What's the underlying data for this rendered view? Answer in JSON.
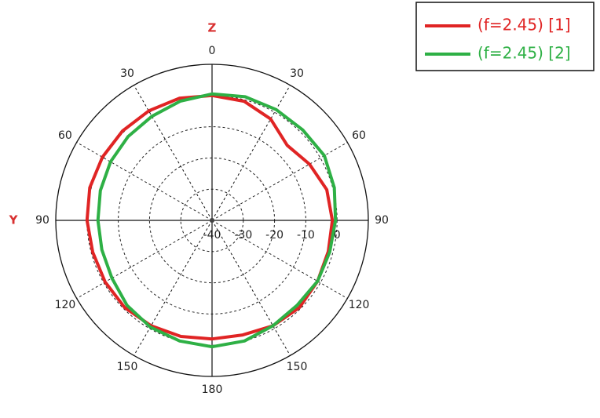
{
  "chart_data": {
    "type": "polar",
    "axis_labels": [
      "Z",
      "Y"
    ],
    "theta": [
      0,
      15,
      30,
      45,
      60,
      75,
      90,
      105,
      120,
      135,
      150,
      165,
      180,
      195,
      210,
      225,
      240,
      255,
      270,
      285,
      300,
      315,
      330,
      345
    ],
    "series": [
      {
        "name": "(f=2.45) [1]",
        "color": "#e02424",
        "values": [
          0,
          -0.5,
          -2.5,
          -6,
          -4,
          -2,
          -1.5,
          -1.5,
          -1,
          -0.5,
          -1,
          -2,
          -2,
          -1.5,
          -1,
          -0.5,
          -0.5,
          -0.5,
          0,
          0.5,
          0.5,
          0.5,
          0.5,
          0.5
        ]
      },
      {
        "name": "(f=2.45) [2]",
        "color": "#2eb045",
        "values": [
          0.5,
          1,
          1,
          1,
          1.5,
          0.5,
          -0.5,
          -1,
          -1,
          -1.5,
          -1,
          0,
          0.5,
          0,
          -0.5,
          -1.5,
          -3,
          -3.5,
          -3.5,
          -3,
          -2.5,
          -2,
          -1.5,
          -0.5
        ]
      }
    ],
    "rlim": [
      -40,
      10
    ],
    "rticks": [
      -40,
      -30,
      -20,
      -10,
      0
    ],
    "thetaticks": [
      0,
      30,
      60,
      90,
      120,
      150,
      180,
      {
        "value": 210,
        "label": "150"
      },
      {
        "value": 240,
        "label": "120"
      },
      {
        "value": 270,
        "label": "90"
      },
      {
        "value": 300,
        "label": "60"
      },
      {
        "value": 330,
        "label": "30"
      }
    ],
    "grid": true
  }
}
